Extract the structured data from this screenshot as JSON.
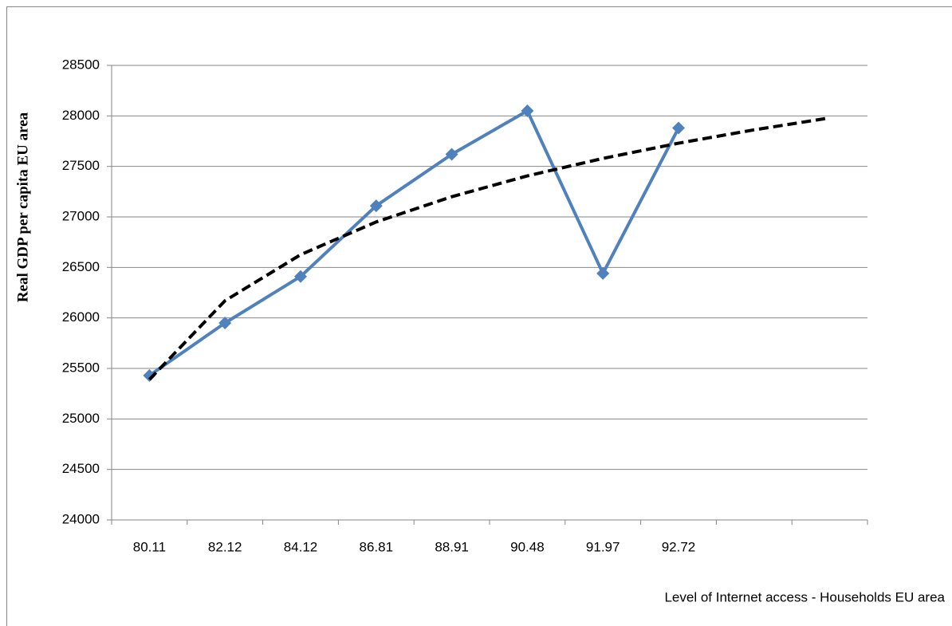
{
  "chart_data": {
    "type": "line",
    "categories": [
      "80.11",
      "82.12",
      "84.12",
      "86.81",
      "88.91",
      "90.48",
      "91.97",
      "92.72",
      null,
      null
    ],
    "series": [
      {
        "color": "#4f81bd",
        "marker": "diamond",
        "values": [
          25430,
          25950,
          26410,
          27110,
          27620,
          28050,
          26440,
          27880,
          null,
          null
        ]
      },
      {
        "color": "#000000",
        "dashed": true,
        "values": [
          25390,
          26170,
          26626,
          26950,
          27200,
          27406,
          27579,
          27730,
          27862,
          27980
        ]
      }
    ],
    "ylim": [
      24000,
      28500
    ],
    "yticks": [
      24000,
      24500,
      25000,
      25500,
      26000,
      26500,
      27000,
      27500,
      28000,
      28500
    ],
    "grid": true,
    "ylabel": "Real GDP per capita EU area",
    "xlabel": "Level of Internet access - Households EU area"
  }
}
